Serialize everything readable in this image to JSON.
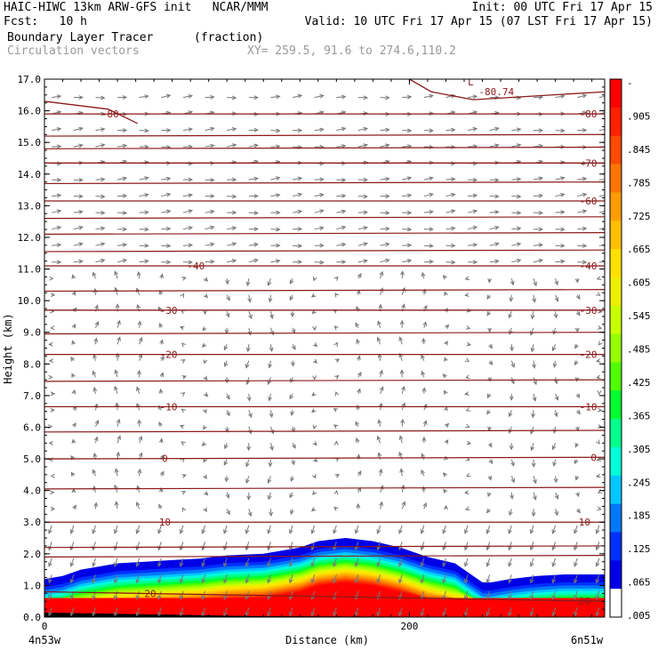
{
  "header": {
    "line1_left": "HAIC-HIWC 13km ARW-GFS init   NCAR/MMM",
    "line1_right": "Init: 00 UTC Fri 17 Apr 15",
    "line2_left": "Fcst:   10 h",
    "line2_right": "Valid: 10 UTC Fri 17 Apr 15 (07 LST Fri 17 Apr 15)",
    "line3_left": "Boundary Layer Tracer",
    "line3_units": "(fraction)",
    "line4_left": "Circulation vectors",
    "line4_xy": "XY= 259.5, 91.6 to 274.6,110.2"
  },
  "chart_data": {
    "type": "cross-section",
    "title": "Boundary Layer Tracer (fraction)",
    "xlabel": "Distance (km)",
    "ylabel": "Height (km)",
    "xlim": [
      0,
      307
    ],
    "ylim": [
      0,
      17
    ],
    "x_ticks": [
      {
        "value": 0,
        "label": "0"
      },
      {
        "value": 200,
        "label": "200"
      }
    ],
    "x_end_labels": {
      "left": "4n53w",
      "right": "6n51w"
    },
    "y_ticks": [
      0,
      1,
      2,
      3,
      4,
      5,
      6,
      7,
      8,
      9,
      10,
      11,
      12,
      13,
      14,
      15,
      16,
      17
    ],
    "y_tick_labels": [
      "0.0",
      "1.0",
      "2.0",
      "3.0",
      "4.0",
      "5.0",
      "6.0",
      "7.0",
      "8.0",
      "9.0",
      "10.0",
      "11.0",
      "12.0",
      "13.0",
      "14.0",
      "15.0",
      "16.0",
      "17.0"
    ],
    "grid": false,
    "colorbar": {
      "labels": [
        "-",
        ".905",
        ".845",
        ".785",
        ".725",
        ".665",
        ".605",
        ".545",
        ".485",
        ".425",
        ".365",
        ".305",
        ".245",
        ".185",
        ".125",
        ".065",
        ".005"
      ],
      "colors": [
        "#ff0000",
        "#ff2000",
        "#ff4a00",
        "#ff7400",
        "#ff9c00",
        "#ffbe00",
        "#ffe000",
        "#eeee00",
        "#c8ff00",
        "#96ff00",
        "#50ff00",
        "#00ff30",
        "#00ff8c",
        "#00ffd8",
        "#00c8ff",
        "#0078ff",
        "#0030ff",
        "#0000e6",
        "#ffffff"
      ]
    },
    "tracer_top_km": [
      [
        0,
        1.2
      ],
      [
        10,
        1.3
      ],
      [
        20,
        1.5
      ],
      [
        30,
        1.6
      ],
      [
        40,
        1.7
      ],
      [
        55,
        1.75
      ],
      [
        70,
        1.8
      ],
      [
        85,
        1.85
      ],
      [
        100,
        1.95
      ],
      [
        120,
        2.0
      ],
      [
        140,
        2.2
      ],
      [
        150,
        2.4
      ],
      [
        165,
        2.5
      ],
      [
        180,
        2.4
      ],
      [
        195,
        2.2
      ],
      [
        210,
        1.9
      ],
      [
        225,
        1.7
      ],
      [
        235,
        1.3
      ],
      [
        240,
        1.1
      ],
      [
        245,
        1.1
      ],
      [
        255,
        1.2
      ],
      [
        270,
        1.3
      ],
      [
        285,
        1.35
      ],
      [
        307,
        1.35
      ]
    ],
    "temperature_contours": [
      {
        "label": "20",
        "height_km": 0.8,
        "slope_km": -0.3,
        "label_x": [
          58,
          296
        ]
      },
      {
        "label": "10",
        "height_km": 3.0,
        "slope_km": 0.0,
        "label_x": [
          66,
          296
        ]
      },
      {
        "label": "0",
        "height_km": 5.0,
        "slope_km": 0.05,
        "label_x": [
          66,
          301
        ]
      },
      {
        "label": "-10",
        "height_km": 6.65,
        "slope_km": 0.0,
        "label_x": [
          68,
          298
        ]
      },
      {
        "label": "-20",
        "height_km": 8.3,
        "slope_km": 0.0,
        "label_x": [
          68,
          298
        ]
      },
      {
        "label": "-30",
        "height_km": 9.7,
        "slope_km": 0.0,
        "label_x": [
          68,
          298
        ]
      },
      {
        "label": "-40",
        "height_km": 11.1,
        "slope_km": 0.0,
        "label_x": [
          83,
          298
        ]
      },
      {
        "label": "-60",
        "height_km": 13.15,
        "slope_km": 0.0,
        "label_x": [
          null,
          298
        ]
      },
      {
        "label": "-70",
        "height_km": 14.35,
        "slope_km": 0.0,
        "label_x": [
          null,
          298
        ]
      },
      {
        "label": "-80",
        "height_km": 15.9,
        "slope_km": 0.0,
        "label_x": [
          36,
          298
        ]
      }
    ],
    "annotations": [
      {
        "text": "L",
        "x_km": 232,
        "height_km": 16.8
      },
      {
        "text": "-80.74",
        "x_km": 238,
        "height_km": 16.5
      }
    ]
  }
}
